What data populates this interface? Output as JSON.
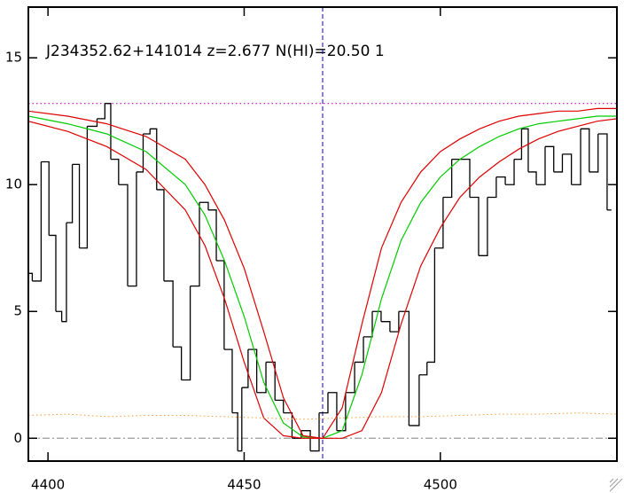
{
  "chart_data": {
    "type": "line",
    "title": "J234352.62+141014 z=2.677 N(HI)=20.50 1",
    "xlim": [
      4395,
      4545
    ],
    "ylim": [
      -0.9,
      17
    ],
    "xticks": [
      4400,
      4450,
      4500
    ],
    "yticks": [
      0,
      5,
      10,
      15
    ],
    "vline": {
      "value": 4470,
      "color": "#0000cc",
      "style": "dashed"
    },
    "hlines": [
      {
        "value": 13.2,
        "color": "#cc00cc",
        "style": "dotted"
      },
      {
        "value": 0,
        "color": "#999999",
        "style": "dashdot"
      }
    ],
    "series": [
      {
        "color": "#000000",
        "style": "steps",
        "x": [
          4395,
          4397,
          4399.5,
          4401,
          4403,
          4404,
          4405.4,
          4407,
          4409,
          4411,
          4414,
          4415,
          4417,
          4419,
          4421.6,
          4423.5,
          4425,
          4427,
          4428.4,
          4430.7,
          4433,
          4435,
          4437.5,
          4439.7,
          4442,
          4443.8,
          4446,
          4447.9,
          4448.8,
          4450,
          4452,
          4454.4,
          4456.7,
          4459,
          4461,
          4463.4,
          4465.7,
          4468,
          4470.2,
          4472.5,
          4474.7,
          4477,
          4479.3,
          4481.5,
          4483.8,
          4486,
          4488.3,
          4490.5,
          4493.5,
          4495.7,
          4497.5,
          4499.6,
          4501.8,
          4504,
          4506.4,
          4508.6,
          4510.9,
          4513.1,
          4515.4,
          4517.7,
          4519.9,
          4521.5,
          4523.3,
          4525.6,
          4527.8,
          4530,
          4532.2,
          4534.6,
          4536.9,
          4539,
          4541.4,
          4543.6
        ],
        "values": [
          6.5,
          6.2,
          10.9,
          8,
          5,
          4.6,
          8.5,
          10.8,
          7.5,
          12.3,
          12.6,
          13.2,
          11,
          10,
          6,
          10.5,
          12,
          12.2,
          9.8,
          6.2,
          3.6,
          2.3,
          6,
          9.3,
          9,
          7,
          3.5,
          1,
          -0.5,
          2,
          3.5,
          1.8,
          3,
          1.5,
          1,
          0,
          0.3,
          -0.5,
          1,
          1.8,
          0.3,
          1.8,
          3,
          4,
          5,
          4.6,
          4.2,
          5,
          0.5,
          2.5,
          3,
          7.5,
          9.5,
          11,
          11,
          9.5,
          7.2,
          9.5,
          10.3,
          10,
          11,
          12.2,
          10.5,
          10,
          11.5,
          10.5,
          11.2,
          10,
          12.2,
          10.5,
          12,
          9
        ]
      },
      {
        "color": "#00cc00",
        "style": "solid",
        "x": [
          4395,
          4405,
          4415,
          4425,
          4435,
          4440,
          4445,
          4450,
          4455,
          4460,
          4465,
          4470,
          4475,
          4480,
          4485,
          4490,
          4495,
          4500,
          4505,
          4510,
          4515,
          4520,
          4525,
          4530,
          4535,
          4540,
          4545
        ],
        "values": [
          12.7,
          12.4,
          12,
          11.3,
          10,
          8.8,
          7,
          4.8,
          2.2,
          0.6,
          0.05,
          0,
          0.3,
          2.5,
          5.5,
          7.8,
          9.3,
          10.3,
          11,
          11.5,
          11.9,
          12.2,
          12.4,
          12.5,
          12.6,
          12.7,
          12.7
        ]
      },
      {
        "color": "#dd0000",
        "style": "solid",
        "x": [
          4395,
          4405,
          4415,
          4425,
          4435,
          4440,
          4445,
          4450,
          4455,
          4460,
          4465,
          4470,
          4475,
          4480,
          4485,
          4490,
          4495,
          4500,
          4505,
          4510,
          4515,
          4520,
          4525,
          4530,
          4535,
          4540,
          4545
        ],
        "values": [
          12.9,
          12.7,
          12.4,
          11.9,
          11,
          10,
          8.6,
          6.7,
          4.2,
          1.6,
          0.1,
          0,
          1.2,
          4.5,
          7.5,
          9.3,
          10.5,
          11.3,
          11.8,
          12.2,
          12.5,
          12.7,
          12.8,
          12.9,
          12.9,
          13,
          13
        ]
      },
      {
        "color": "#dd0000",
        "style": "solid",
        "x": [
          4395,
          4405,
          4415,
          4425,
          4435,
          4440,
          4445,
          4450,
          4455,
          4460,
          4465,
          4470,
          4475,
          4480,
          4485,
          4490,
          4495,
          4500,
          4505,
          4510,
          4515,
          4520,
          4525,
          4530,
          4535,
          4540,
          4545
        ],
        "values": [
          12.5,
          12.1,
          11.5,
          10.6,
          9,
          7.6,
          5.5,
          3,
          0.8,
          0.1,
          0,
          0,
          0,
          0.3,
          1.8,
          4.5,
          6.8,
          8.3,
          9.5,
          10.3,
          10.9,
          11.4,
          11.8,
          12.1,
          12.3,
          12.5,
          12.6
        ]
      },
      {
        "color": "#ff9933",
        "style": "dotted",
        "x": [
          4395,
          4405,
          4415,
          4425,
          4435,
          4445,
          4455,
          4465,
          4475,
          4485,
          4495,
          4505,
          4515,
          4525,
          4535,
          4545
        ],
        "values": [
          0.9,
          0.95,
          0.85,
          0.9,
          0.9,
          0.85,
          0.8,
          0.75,
          0.8,
          0.85,
          0.85,
          0.9,
          0.95,
          0.95,
          1.0,
          0.95
        ]
      }
    ]
  }
}
